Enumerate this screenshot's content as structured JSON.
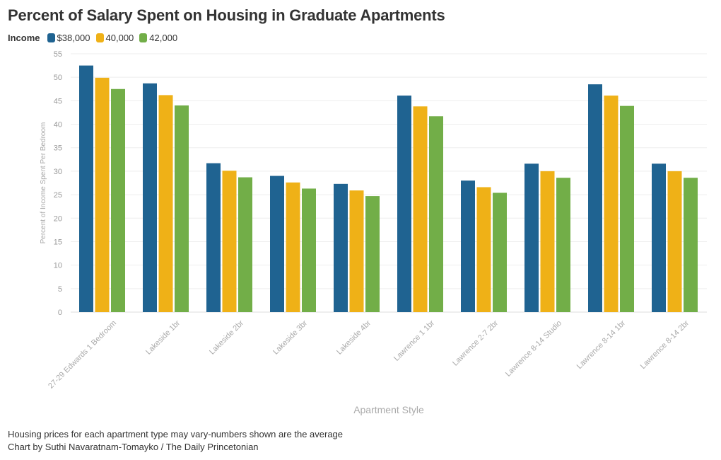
{
  "title": "Percent of Salary Spent on Housing in Graduate Apartments",
  "legend": {
    "title": "Income"
  },
  "chart_data": {
    "type": "bar",
    "title": "Percent of Salary Spent on Housing in Graduate Apartments",
    "xlabel": "Apartment Style",
    "ylabel": "Percent of Income Spent Per Bedroom",
    "ylim": [
      0,
      55
    ],
    "yticks": [
      0,
      5,
      10,
      15,
      20,
      25,
      30,
      35,
      40,
      45,
      50,
      55
    ],
    "grid": true,
    "legend_position": "top-left",
    "categories": [
      "27-29 Edwards 1 Bedroom",
      "Lakeside 1br",
      "Lakeside 2br",
      "Lakeside 3br",
      "Lakeside 4br",
      "Lawrence 1 1br",
      "Lawrence 2-7 2br",
      "Lawrence 8-14 Studio",
      "Lawrence 8-14 1br",
      "Lawrence 8-14 2br"
    ],
    "series": [
      {
        "name": "$38,000",
        "color": "#1f6391",
        "values": [
          52.5,
          48.7,
          31.7,
          29.0,
          27.3,
          46.1,
          28.0,
          31.6,
          48.5,
          31.6
        ]
      },
      {
        "name": "40,000",
        "color": "#efb117",
        "values": [
          49.9,
          46.2,
          30.1,
          27.6,
          25.9,
          43.8,
          26.6,
          30.0,
          46.1,
          30.0
        ]
      },
      {
        "name": "42,000",
        "color": "#72ae48",
        "values": [
          47.5,
          44.0,
          28.7,
          26.3,
          24.7,
          41.7,
          25.4,
          28.6,
          43.9,
          28.6
        ]
      }
    ]
  },
  "footer": {
    "note": "Housing prices for each apartment type may vary-numbers shown are the average",
    "credit": "Chart by Suthi Navaratnam-Tomayko / The Daily Princetonian"
  }
}
